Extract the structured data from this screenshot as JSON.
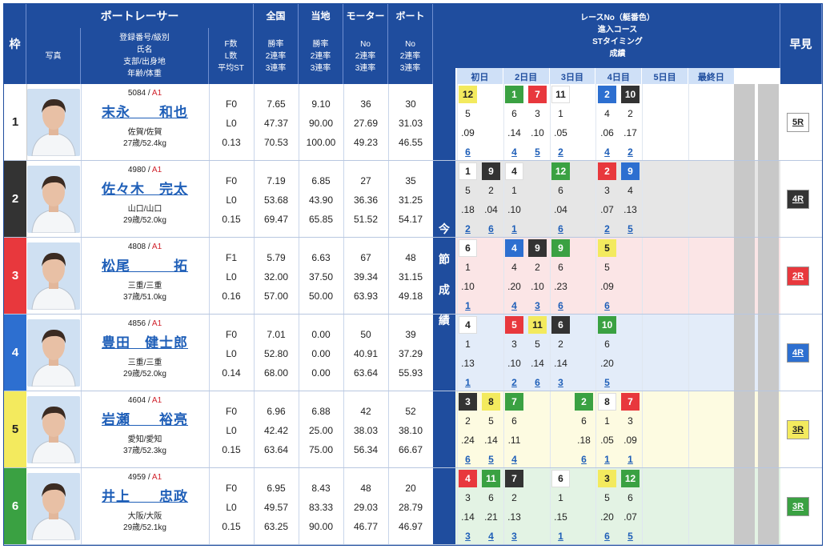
{
  "header": {
    "waku": "枠",
    "boatracer": "ボートレーサー",
    "photo": "写真",
    "info": [
      "登録番号/級別",
      "氏名",
      "支部/出身地",
      "年齢/体重"
    ],
    "fl": [
      "F数",
      "L数",
      "平均ST"
    ],
    "zenkoku": "全国",
    "touchi": "当地",
    "motor": "モーター",
    "boat": "ボート",
    "rate3": [
      "勝率",
      "2連率",
      "3連率"
    ],
    "rateNo": [
      "No",
      "2連率",
      "3連率"
    ],
    "race_title": [
      "レースNo（艇番色）",
      "進入コース",
      "STタイミング",
      "成績"
    ],
    "konsetsu": [
      "今",
      "節",
      "成",
      "績"
    ],
    "hayami": "早見",
    "days": [
      "初日",
      "2日目",
      "3日目",
      "4日目",
      "5日目",
      "最終日"
    ]
  },
  "colors": {
    "1": "#ffffff",
    "2": "#333333",
    "3": "#e8383d",
    "4": "#2d6fd0",
    "5": "#f3ea5e",
    "6": "#3aa142",
    "bgtint": [
      "#ffffff",
      "#e6e6e6",
      "#fbe5e6",
      "#e3ecf9",
      "#fdfbe1",
      "#e3f3e4"
    ]
  },
  "racers": [
    {
      "waku": "1",
      "regno": "5084",
      "cls": "A1",
      "name": "末永　　和也",
      "branch": "佐賀/佐賀",
      "agewt": "27歳/52.4kg",
      "f": "F0",
      "l": "L0",
      "st": "0.13",
      "zen": [
        "7.65",
        "47.37",
        "70.53"
      ],
      "tou": [
        "9.10",
        "90.00",
        "100.00"
      ],
      "motor": [
        "36",
        "27.69",
        "49.23"
      ],
      "boat": [
        "30",
        "31.03",
        "46.55"
      ],
      "races": [
        {
          "col": 0,
          "no": "12",
          "c": "5",
          "course": "5",
          "st": ".09",
          "res": "6"
        },
        {
          "col": 2,
          "no": "1",
          "c": "6",
          "course": "6",
          "st": ".14",
          "res": "4"
        },
        {
          "col": 3,
          "no": "7",
          "c": "3",
          "course": "3",
          "st": ".10",
          "res": "5"
        },
        {
          "col": 4,
          "no": "11",
          "c": "1",
          "course": "1",
          "st": ".05",
          "res": "2"
        },
        {
          "col": 6,
          "no": "2",
          "c": "4",
          "course": "4",
          "st": ".06",
          "res": "4"
        },
        {
          "col": 7,
          "no": "10",
          "c": "2",
          "course": "2",
          "st": ".17",
          "res": "2"
        }
      ],
      "hayami": "5R"
    },
    {
      "waku": "2",
      "regno": "4980",
      "cls": "A1",
      "name": "佐々木　完太",
      "branch": "山口/山口",
      "agewt": "29歳/52.0kg",
      "f": "F0",
      "l": "L0",
      "st": "0.15",
      "zen": [
        "7.19",
        "53.68",
        "69.47"
      ],
      "tou": [
        "6.85",
        "43.90",
        "65.85"
      ],
      "motor": [
        "27",
        "36.36",
        "51.52"
      ],
      "boat": [
        "35",
        "31.25",
        "54.17"
      ],
      "races": [
        {
          "col": 0,
          "no": "1",
          "c": "1",
          "course": "5",
          "st": ".18",
          "res": "2"
        },
        {
          "col": 1,
          "no": "9",
          "c": "2",
          "course": "2",
          "st": ".04",
          "res": "6"
        },
        {
          "col": 2,
          "no": "4",
          "c": "1",
          "course": "1",
          "st": ".10",
          "res": "1"
        },
        {
          "col": 4,
          "no": "12",
          "c": "6",
          "course": "6",
          "st": ".04",
          "res": "6"
        },
        {
          "col": 6,
          "no": "2",
          "c": "3",
          "course": "3",
          "st": ".07",
          "res": "2"
        },
        {
          "col": 7,
          "no": "9",
          "c": "4",
          "course": "4",
          "st": ".13",
          "res": "5"
        }
      ],
      "hayami": "4R"
    },
    {
      "waku": "3",
      "regno": "4808",
      "cls": "A1",
      "name": "松尾　　　拓",
      "branch": "三重/三重",
      "agewt": "37歳/51.0kg",
      "f": "F1",
      "l": "L0",
      "st": "0.16",
      "zen": [
        "5.79",
        "32.00",
        "57.00"
      ],
      "tou": [
        "6.63",
        "37.50",
        "50.00"
      ],
      "motor": [
        "67",
        "39.34",
        "63.93"
      ],
      "boat": [
        "48",
        "31.15",
        "49.18"
      ],
      "races": [
        {
          "col": 0,
          "no": "6",
          "c": "1",
          "course": "1",
          "st": ".10",
          "res": "1"
        },
        {
          "col": 2,
          "no": "4",
          "c": "4",
          "course": "4",
          "st": ".20",
          "res": "4"
        },
        {
          "col": 3,
          "no": "9",
          "c": "2",
          "course": "2",
          "st": ".10",
          "res": "3"
        },
        {
          "col": 4,
          "no": "9",
          "c": "6",
          "course": "6",
          "st": ".23",
          "res": "6"
        },
        {
          "col": 6,
          "no": "5",
          "c": "5",
          "course": "5",
          "st": ".09",
          "res": "6"
        }
      ],
      "hayami": "2R"
    },
    {
      "waku": "4",
      "regno": "4856",
      "cls": "A1",
      "name": "豊田　健士郎",
      "branch": "三重/三重",
      "agewt": "29歳/52.0kg",
      "f": "F0",
      "l": "L0",
      "st": "0.14",
      "zen": [
        "7.01",
        "52.80",
        "68.00"
      ],
      "tou": [
        "0.00",
        "0.00",
        "0.00"
      ],
      "motor": [
        "50",
        "40.91",
        "63.64"
      ],
      "boat": [
        "39",
        "37.29",
        "55.93"
      ],
      "races": [
        {
          "col": 0,
          "no": "4",
          "c": "1",
          "course": "1",
          "st": ".13",
          "res": "1"
        },
        {
          "col": 2,
          "no": "5",
          "c": "3",
          "course": "3",
          "st": ".10",
          "res": "2"
        },
        {
          "col": 3,
          "no": "11",
          "c": "5",
          "course": "5",
          "st": ".14",
          "res": "6"
        },
        {
          "col": 4,
          "no": "6",
          "c": "2",
          "course": "2",
          "st": ".14",
          "res": "3"
        },
        {
          "col": 6,
          "no": "10",
          "c": "6",
          "course": "6",
          "st": ".20",
          "res": "5"
        }
      ],
      "hayami": "4R"
    },
    {
      "waku": "5",
      "regno": "4604",
      "cls": "A1",
      "name": "岩瀬　　裕亮",
      "branch": "愛知/愛知",
      "agewt": "37歳/52.3kg",
      "f": "F0",
      "l": "L0",
      "st": "0.15",
      "zen": [
        "6.96",
        "42.42",
        "63.64"
      ],
      "tou": [
        "6.88",
        "25.00",
        "75.00"
      ],
      "motor": [
        "42",
        "38.03",
        "56.34"
      ],
      "boat": [
        "52",
        "38.10",
        "66.67"
      ],
      "races": [
        {
          "col": 0,
          "no": "3",
          "c": "2",
          "course": "2",
          "st": ".24",
          "res": "6"
        },
        {
          "col": 1,
          "no": "8",
          "c": "5",
          "course": "5",
          "st": ".14",
          "res": "5"
        },
        {
          "col": 2,
          "no": "7",
          "c": "6",
          "course": "6",
          "st": ".11",
          "res": "4"
        },
        {
          "col": 5,
          "no": "2",
          "c": "6",
          "course": "6",
          "st": ".18",
          "res": "6"
        },
        {
          "col": 6,
          "no": "8",
          "c": "1",
          "course": "1",
          "st": ".05",
          "res": "1"
        },
        {
          "col": 7,
          "no": "7",
          "c": "3",
          "course": "3",
          "st": ".09",
          "res": "1"
        }
      ],
      "hayami": "3R"
    },
    {
      "waku": "6",
      "regno": "4959",
      "cls": "A1",
      "name": "井上　　忠政",
      "branch": "大阪/大阪",
      "agewt": "29歳/52.1kg",
      "f": "F0",
      "l": "L0",
      "st": "0.15",
      "zen": [
        "6.95",
        "49.57",
        "63.25"
      ],
      "tou": [
        "8.43",
        "83.33",
        "90.00"
      ],
      "motor": [
        "48",
        "29.03",
        "46.77"
      ],
      "boat": [
        "20",
        "28.79",
        "46.97"
      ],
      "races": [
        {
          "col": 0,
          "no": "4",
          "c": "3",
          "course": "3",
          "st": ".14",
          "res": "3"
        },
        {
          "col": 1,
          "no": "11",
          "c": "6",
          "course": "6",
          "st": ".21",
          "res": "4"
        },
        {
          "col": 2,
          "no": "7",
          "c": "2",
          "course": "2",
          "st": ".13",
          "res": "3"
        },
        {
          "col": 4,
          "no": "6",
          "c": "1",
          "course": "1",
          "st": ".15",
          "res": "1"
        },
        {
          "col": 6,
          "no": "3",
          "c": "5",
          "course": "5",
          "st": ".20",
          "res": "6"
        },
        {
          "col": 7,
          "no": "12",
          "c": "6",
          "course": "6",
          "st": ".07",
          "res": "5"
        }
      ],
      "hayami": "3R"
    }
  ]
}
